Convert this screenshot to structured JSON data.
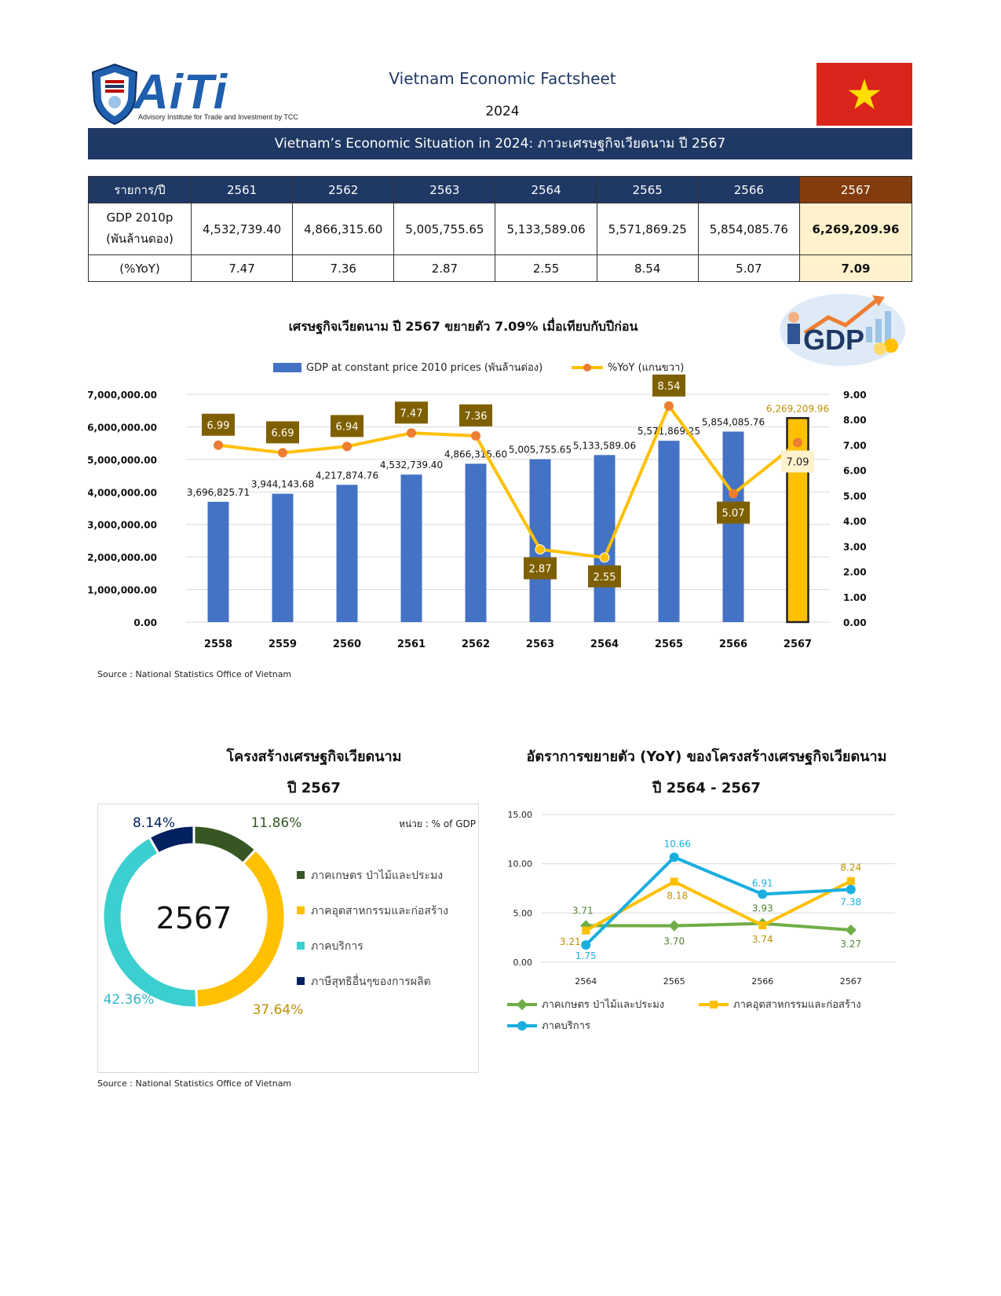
{
  "header": {
    "logo_wordmark": "AiTi",
    "logo_tagline": "Advisory Institute for Trade and Investment by TCC",
    "title": "Vietnam Economic Factsheet",
    "year": "2024",
    "banner": "Vietnam’s Economic Situation in 2024: ภาวะเศรษฐกิจเวียดนาม ปี 2567"
  },
  "table": {
    "corner": "รายการ/ปี",
    "years": [
      "2561",
      "2562",
      "2563",
      "2564",
      "2565",
      "2566",
      "2567"
    ],
    "gdp_label_1": "GDP 2010p",
    "gdp_label_2": "(พันล้านดอง)",
    "gdp": [
      "4,532,739.40",
      "4,866,315.60",
      "5,005,755.65",
      "5,133,589.06",
      "5,571,869.25",
      "5,854,085.76",
      "6,269,209.96"
    ],
    "yoy_label": "(%YoY)",
    "yoy": [
      "7.47",
      "7.36",
      "2.87",
      "2.55",
      "8.54",
      "5.07",
      "7.09"
    ]
  },
  "main_chart": {
    "title": "เศรษฐกิจเวียดนาม ปี 2567 ขยายตัว 7.09% เมื่อเทียบกับปีก่อน",
    "illustration_text": "GDP",
    "source": "Source : National Statistics Office of Vietnam"
  },
  "pie_chart": {
    "title_1": "โครงสร้างเศรษฐกิจเวียดนาม",
    "title_2": "ปี 2567",
    "source": "Source : National Statistics Office of Vietnam"
  },
  "line_chart": {
    "title_1": "อัตราการขยายตัว (YoY) ของโครงสร้างเศรษฐกิจเวียดนาม",
    "title_2": "ปี 2564 - 2567"
  },
  "chart_data": [
    {
      "type": "bar",
      "categories": [
        "2558",
        "2559",
        "2560",
        "2561",
        "2562",
        "2563",
        "2564",
        "2565",
        "2566",
        "2567"
      ],
      "series": [
        {
          "name": "GDP at constant price 2010 prices (พันล้านด่อง)",
          "type": "bar",
          "axis": "left",
          "values": [
            3696825.71,
            3944143.68,
            4217874.76,
            4532739.4,
            4866315.6,
            5005755.65,
            5133589.06,
            5571869.25,
            5854085.76,
            6269209.96
          ],
          "labels": [
            "3,696,825.71",
            "3,944,143.68",
            "4,217,874.76",
            "4,532,739.40",
            "4,866,315.60",
            "5,005,755.65",
            "5,133,589.06",
            "5,571,869.25",
            "5,854,085.76",
            "6,269,209.96"
          ]
        },
        {
          "name": "%YoY (แกนขวา)",
          "type": "line",
          "axis": "right",
          "values": [
            6.99,
            6.69,
            6.94,
            7.47,
            7.36,
            2.87,
            2.55,
            8.54,
            5.07,
            7.09
          ],
          "labels": [
            "6.99",
            "6.69",
            "6.94",
            "7.47",
            "7.36",
            "2.87",
            "2.55",
            "8.54",
            "5.07",
            "7.09"
          ]
        }
      ],
      "y_left": {
        "ylim": [
          0,
          7000000
        ],
        "ticks": [
          "0.00",
          "1,000,000.00",
          "2,000,000.00",
          "3,000,000.00",
          "4,000,000.00",
          "5,000,000.00",
          "6,000,000.00",
          "7,000,000.00"
        ]
      },
      "y_right": {
        "ylim": [
          0,
          9
        ],
        "ticks": [
          "0.00",
          "1.00",
          "2.00",
          "3.00",
          "4.00",
          "5.00",
          "6.00",
          "7.00",
          "8.00",
          "9.00"
        ]
      },
      "highlight_category": "2567",
      "legend_position": "top",
      "grid": true,
      "colors": {
        "bar": "#4472c4",
        "bar_highlight": "#ffc000",
        "line": "#ffc000",
        "marker": "#ed7d31",
        "label_box": "#7f6000",
        "highlight_label_box": "#fff2cc"
      }
    },
    {
      "type": "pie",
      "variant": "donut",
      "center_label": "2567",
      "unit_note": "หน่วย : % of GDP",
      "slices": [
        {
          "name": "ภาคเกษตร ป่าไม้และประมง",
          "value": 11.86,
          "label": "11.86%",
          "color": "#375623"
        },
        {
          "name": "ภาคอุตสาหกรรมและก่อสร้าง",
          "value": 37.64,
          "label": "37.64%",
          "color": "#ffc000"
        },
        {
          "name": "ภาคบริการ",
          "value": 42.36,
          "label": "42.36%",
          "color": "#3ccfcf"
        },
        {
          "name": "ภาษีสุทธิอื่นๆของการผลิต",
          "value": 8.14,
          "label": "8.14%",
          "color": "#002060"
        }
      ],
      "legend_position": "right"
    },
    {
      "type": "line",
      "x": [
        "2564",
        "2565",
        "2566",
        "2567"
      ],
      "series": [
        {
          "name": "ภาคเกษตร ป่าไม้และประมง",
          "values": [
            3.71,
            3.7,
            3.93,
            3.27
          ],
          "labels": [
            "3.71",
            "3.70",
            "3.93",
            "3.27"
          ],
          "color": "#70ad47",
          "label_color": "#548235"
        },
        {
          "name": "ภาคอุตสาหกรรมและก่อสร้าง",
          "values": [
            3.21,
            8.18,
            3.74,
            8.24
          ],
          "labels": [
            "3.21",
            "8.18",
            "3.74",
            "8.24"
          ],
          "color": "#ffc000",
          "label_color": "#bf9000"
        },
        {
          "name": "ภาคบริการ",
          "values": [
            1.75,
            10.66,
            6.91,
            7.38
          ],
          "labels": [
            "1.75",
            "10.66",
            "6.91",
            "7.38"
          ],
          "color": "#1aaee0",
          "label_color": "#1aaee0"
        }
      ],
      "ylim": [
        0,
        15
      ],
      "y_ticks": [
        "0.00",
        "5.00",
        "10.00",
        "15.00"
      ],
      "grid": true,
      "legend_position": "bottom"
    }
  ]
}
